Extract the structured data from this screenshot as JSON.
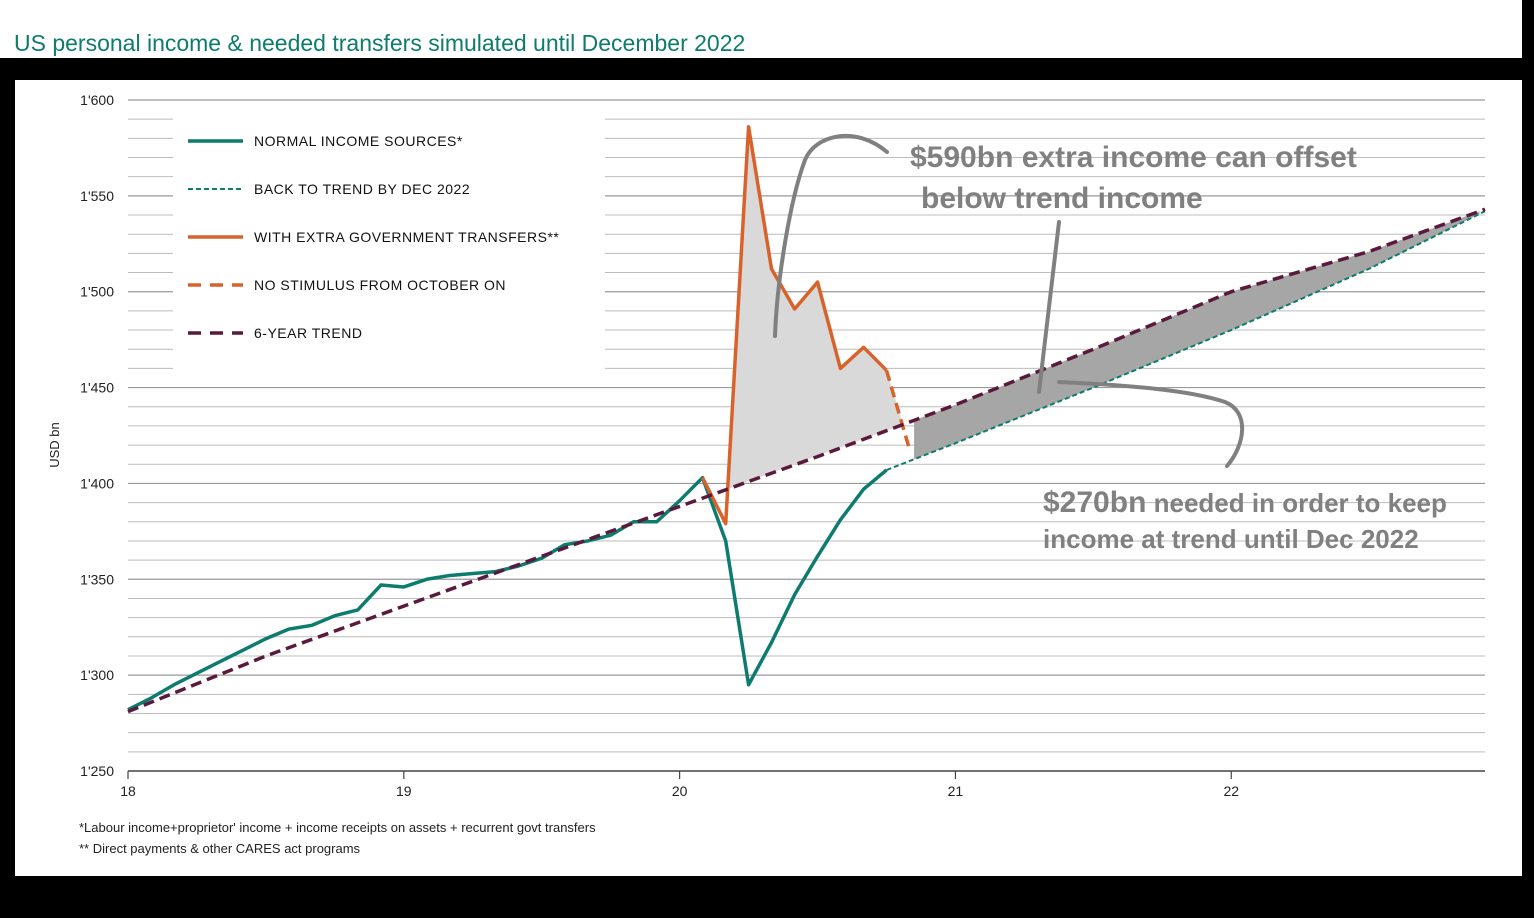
{
  "title": "US personal income & needed transfers simulated until December 2022",
  "chart_data": {
    "type": "line",
    "ylabel": "USD bn",
    "ylim": [
      1250,
      1600
    ],
    "xlim": [
      18,
      22.92
    ],
    "yticks": [
      1250,
      1300,
      1350,
      1400,
      1450,
      1500,
      1550,
      1600
    ],
    "ytick_labels": [
      "1'250",
      "1'300",
      "1'350",
      "1'400",
      "1'450",
      "1'500",
      "1'550",
      "1'600"
    ],
    "xticks": [
      18,
      19,
      20,
      21,
      22
    ],
    "xtick_labels": [
      "18",
      "19",
      "20",
      "21",
      "22"
    ],
    "grid": true,
    "series": [
      {
        "name": "NORMAL INCOME SOURCES*",
        "style": "solid",
        "color": "#0d7c6e",
        "points": [
          [
            18.0,
            1282
          ],
          [
            18.083,
            1288
          ],
          [
            18.167,
            1295
          ],
          [
            18.25,
            1301
          ],
          [
            18.333,
            1307
          ],
          [
            18.417,
            1313
          ],
          [
            18.5,
            1319
          ],
          [
            18.583,
            1324
          ],
          [
            18.667,
            1326
          ],
          [
            18.75,
            1331
          ],
          [
            18.833,
            1334
          ],
          [
            18.917,
            1347
          ],
          [
            19.0,
            1346
          ],
          [
            19.083,
            1350
          ],
          [
            19.167,
            1352
          ],
          [
            19.25,
            1353
          ],
          [
            19.333,
            1354
          ],
          [
            19.417,
            1357
          ],
          [
            19.5,
            1361
          ],
          [
            19.583,
            1368
          ],
          [
            19.667,
            1370
          ],
          [
            19.75,
            1373
          ],
          [
            19.833,
            1380
          ],
          [
            19.917,
            1380
          ],
          [
            20.0,
            1391
          ],
          [
            20.083,
            1403
          ],
          [
            20.167,
            1370
          ],
          [
            20.25,
            1295
          ],
          [
            20.333,
            1317
          ],
          [
            20.417,
            1342
          ],
          [
            20.5,
            1362
          ],
          [
            20.583,
            1381
          ],
          [
            20.667,
            1397
          ],
          [
            20.75,
            1407
          ]
        ]
      },
      {
        "name": "BACK TO TREND BY DEC 2022",
        "style": "dotted",
        "color": "#0d7c6e",
        "points": [
          [
            20.75,
            1407
          ],
          [
            21.0,
            1421
          ],
          [
            21.5,
            1450
          ],
          [
            22.0,
            1480
          ],
          [
            22.5,
            1512
          ],
          [
            22.92,
            1542
          ]
        ]
      },
      {
        "name": "WITH EXTRA GOVERNMENT TRANSFERS**",
        "style": "solid",
        "color": "#d9622b",
        "points": [
          [
            20.083,
            1403
          ],
          [
            20.167,
            1379
          ],
          [
            20.25,
            1586
          ],
          [
            20.333,
            1512
          ],
          [
            20.417,
            1491
          ],
          [
            20.5,
            1505
          ],
          [
            20.583,
            1460
          ],
          [
            20.667,
            1471
          ],
          [
            20.75,
            1459
          ]
        ]
      },
      {
        "name": "NO STIMULUS FROM OCTOBER ON",
        "style": "dashed",
        "color": "#d9622b",
        "points": [
          [
            20.75,
            1459
          ],
          [
            20.833,
            1418
          ]
        ]
      },
      {
        "name": "6-YEAR TREND",
        "style": "dashed",
        "color": "#5a1a3e",
        "points": [
          [
            18.0,
            1281
          ],
          [
            18.5,
            1310
          ],
          [
            19.0,
            1336
          ],
          [
            19.5,
            1362
          ],
          [
            20.0,
            1388
          ],
          [
            20.5,
            1414
          ],
          [
            21.0,
            1441
          ],
          [
            21.5,
            1470
          ],
          [
            22.0,
            1500
          ],
          [
            22.5,
            1521
          ],
          [
            22.92,
            1543
          ]
        ]
      }
    ],
    "shaded_areas": [
      {
        "label": "$590bn extra income can offset below trend income",
        "color": "#d9d9d9"
      },
      {
        "label": "$270bn needed in order to keep income at trend until Dec 2022",
        "color": "#a6a6a6"
      }
    ],
    "annotations": [
      {
        "line1": "$590bn extra income can offset",
        "line2": "below trend income"
      },
      {
        "big": "$270bn",
        "rest": " needed in order to keep",
        "line2": "income at trend until Dec 2022"
      }
    ],
    "footnotes": [
      "*Labour income+proprietor' income + income receipts on assets + recurrent govt transfers",
      "** Direct payments & other CARES act programs"
    ]
  },
  "legend": [
    {
      "label": "NORMAL INCOME SOURCES*",
      "color": "#0d7c6e",
      "style": "solid"
    },
    {
      "label": "BACK TO TREND BY DEC 2022",
      "color": "#0d7c6e",
      "style": "dotted"
    },
    {
      "label": "WITH EXTRA GOVERNMENT TRANSFERS**",
      "color": "#d9622b",
      "style": "solid"
    },
    {
      "label": "NO STIMULUS FROM OCTOBER ON",
      "color": "#d9622b",
      "style": "dashed"
    },
    {
      "label": "6-YEAR TREND",
      "color": "#5a1a3e",
      "style": "dashed"
    }
  ]
}
